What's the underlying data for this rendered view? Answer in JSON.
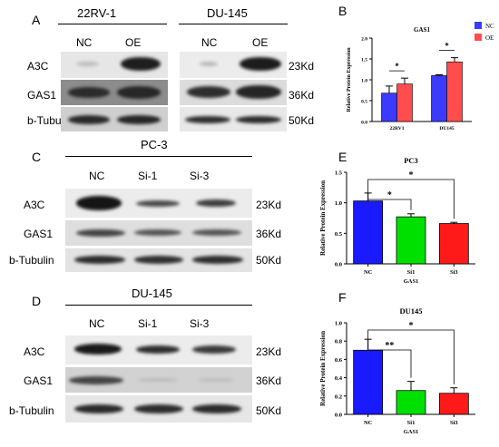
{
  "panels": {
    "A": {
      "letter": "A",
      "groups": [
        {
          "cell_line": "22RV-1",
          "lanes": [
            "NC",
            "OE"
          ]
        },
        {
          "cell_line": "DU-145",
          "lanes": [
            "NC",
            "OE"
          ]
        }
      ],
      "rows": [
        {
          "protein": "A3C",
          "size": "23Kd"
        },
        {
          "protein": "GAS1",
          "size": "36Kd"
        },
        {
          "protein": "b-Tubulin",
          "size": "50Kd"
        }
      ]
    },
    "C": {
      "letter": "C",
      "cell_line": "PC-3",
      "lanes": [
        "NC",
        "Si-1",
        "Si-3"
      ],
      "rows": [
        {
          "protein": "A3C",
          "size": "23Kd"
        },
        {
          "protein": "GAS1",
          "size": "36Kd"
        },
        {
          "protein": "b-Tubulin",
          "size": "50Kd"
        }
      ]
    },
    "D": {
      "letter": "D",
      "cell_line": "DU-145",
      "lanes": [
        "NC",
        "Si-1",
        "Si-3"
      ],
      "rows": [
        {
          "protein": "A3C",
          "size": "23Kd"
        },
        {
          "protein": "GAS1",
          "size": "36Kd"
        },
        {
          "protein": "b-Tubulin",
          "size": "50Kd"
        }
      ]
    }
  },
  "chart_data": [
    {
      "panel": "B",
      "type": "bar",
      "title": "GAS1",
      "ylabel": "Relative Protein Expression",
      "xlabel": "",
      "categories": [
        "22RV1",
        "DU145"
      ],
      "ylim": [
        0,
        2.0
      ],
      "yticks": [
        "0.0",
        "0.5",
        "1.0",
        "1.5",
        "2.0"
      ],
      "series": [
        {
          "name": "NC",
          "color": "#3b3bff",
          "values": [
            0.68,
            1.1
          ],
          "errors": [
            0.17,
            0.02
          ]
        },
        {
          "name": "OE",
          "color": "#ff4d4d",
          "values": [
            0.9,
            1.43
          ],
          "errors": [
            0.14,
            0.1
          ]
        }
      ],
      "legend": "right",
      "significance": [
        {
          "category": "22RV1",
          "label": "*"
        },
        {
          "category": "DU145",
          "label": "*"
        }
      ]
    },
    {
      "panel": "E",
      "type": "bar",
      "title": "PC3",
      "ylabel": "Relative Protein Expression",
      "xlabel": "GAS1",
      "categories": [
        "NC",
        "Si1",
        "Si3"
      ],
      "ylim": [
        0,
        1.5
      ],
      "yticks": [
        "0.0",
        "0.5",
        "1.0",
        "1.5"
      ],
      "values": [
        1.03,
        0.77,
        0.66
      ],
      "errors": [
        0.13,
        0.05,
        0.02
      ],
      "colors": [
        "#1a1aff",
        "#00e000",
        "#ff1a1a"
      ],
      "significance": [
        {
          "from": "NC",
          "to": "Si1",
          "label": "*"
        },
        {
          "from": "NC",
          "to": "Si3",
          "label": "*"
        }
      ]
    },
    {
      "panel": "F",
      "type": "bar",
      "title": "DU145",
      "ylabel": "Relative Protein Expression",
      "xlabel": "GAS1",
      "categories": [
        "NC",
        "Si1",
        "Si3"
      ],
      "ylim": [
        0,
        1.0
      ],
      "yticks": [
        "0.0",
        "0.2",
        "0.4",
        "0.6",
        "0.8",
        "1.0"
      ],
      "values": [
        0.7,
        0.26,
        0.23
      ],
      "errors": [
        0.12,
        0.1,
        0.06
      ],
      "colors": [
        "#1a1aff",
        "#00e000",
        "#ff1a1a"
      ],
      "significance": [
        {
          "from": "NC",
          "to": "Si1",
          "label": "**"
        },
        {
          "from": "NC",
          "to": "Si3",
          "label": "*"
        }
      ]
    }
  ]
}
